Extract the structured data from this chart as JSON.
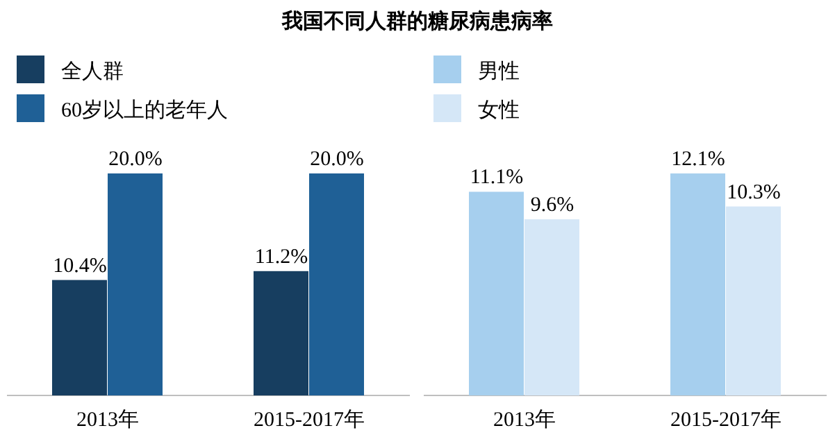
{
  "chart_data": [
    {
      "type": "bar",
      "title": "我国不同人群的糖尿病患病率",
      "categories": [
        "2013年",
        "2015-2017年"
      ],
      "legend": "top left",
      "series": [
        {
          "name": "全人群",
          "color": "#173e60",
          "values": [
            10.4,
            11.2
          ],
          "value_labels": [
            "10.4%",
            "11.2%"
          ]
        },
        {
          "name": "60岁以上的老年人",
          "color": "#1f6096",
          "values": [
            20.0,
            20.0
          ],
          "value_labels": [
            "20.0%",
            "20.0%"
          ]
        }
      ]
    },
    {
      "type": "bar",
      "categories": [
        "2013年",
        "2015-2017年"
      ],
      "legend": "top left",
      "series": [
        {
          "name": "男性",
          "color": "#a6cfee",
          "values": [
            11.1,
            12.1
          ],
          "value_labels": [
            "11.1%",
            "12.1%"
          ]
        },
        {
          "name": "女性",
          "color": "#d5e7f7",
          "values": [
            9.6,
            10.3
          ],
          "value_labels": [
            "9.6%",
            "10.3%"
          ]
        }
      ]
    }
  ]
}
